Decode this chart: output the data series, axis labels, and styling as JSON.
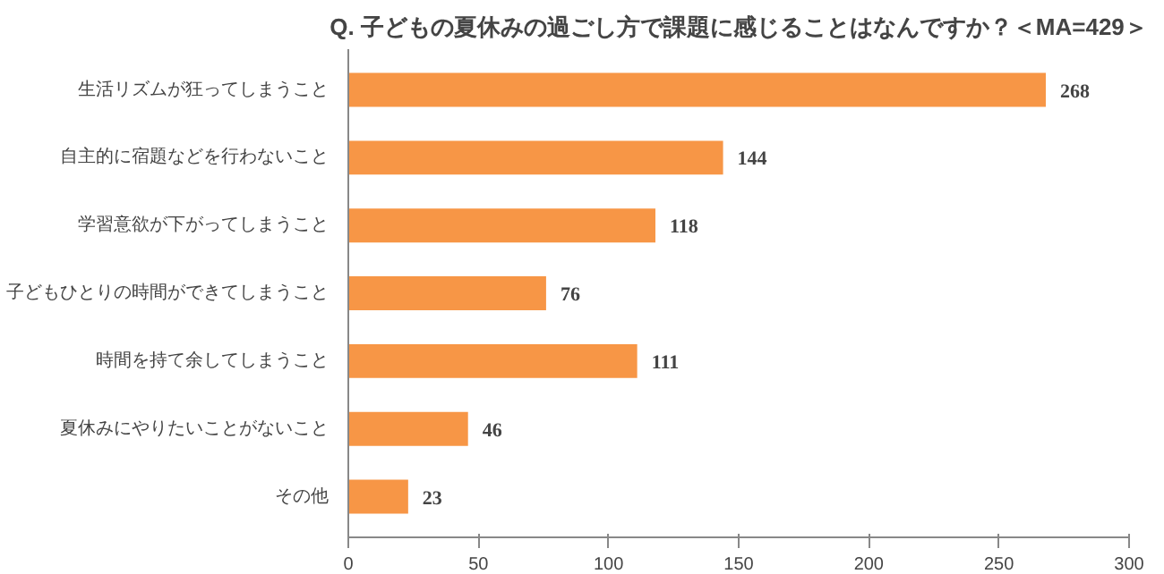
{
  "chart_data": {
    "type": "bar",
    "orientation": "horizontal",
    "title": "Q. 子どもの夏休みの過ごし方で課題に感じることはなんですか？＜MA=429＞",
    "categories": [
      "生活リズムが狂ってしまうこと",
      "自主的に宿題などを行わないこと",
      "学習意欲が下がってしまうこと",
      "子どもひとりの時間ができてしまうこと",
      "時間を持て余してしまうこと",
      "夏休みにやりたいことがないこと",
      "その他"
    ],
    "values": [
      268,
      144,
      118,
      76,
      111,
      46,
      23
    ],
    "color": "#f79646",
    "xlim": [
      0,
      300
    ],
    "xticks": [
      0,
      50,
      100,
      150,
      200,
      250,
      300
    ],
    "data_labels": true,
    "grid": false
  }
}
